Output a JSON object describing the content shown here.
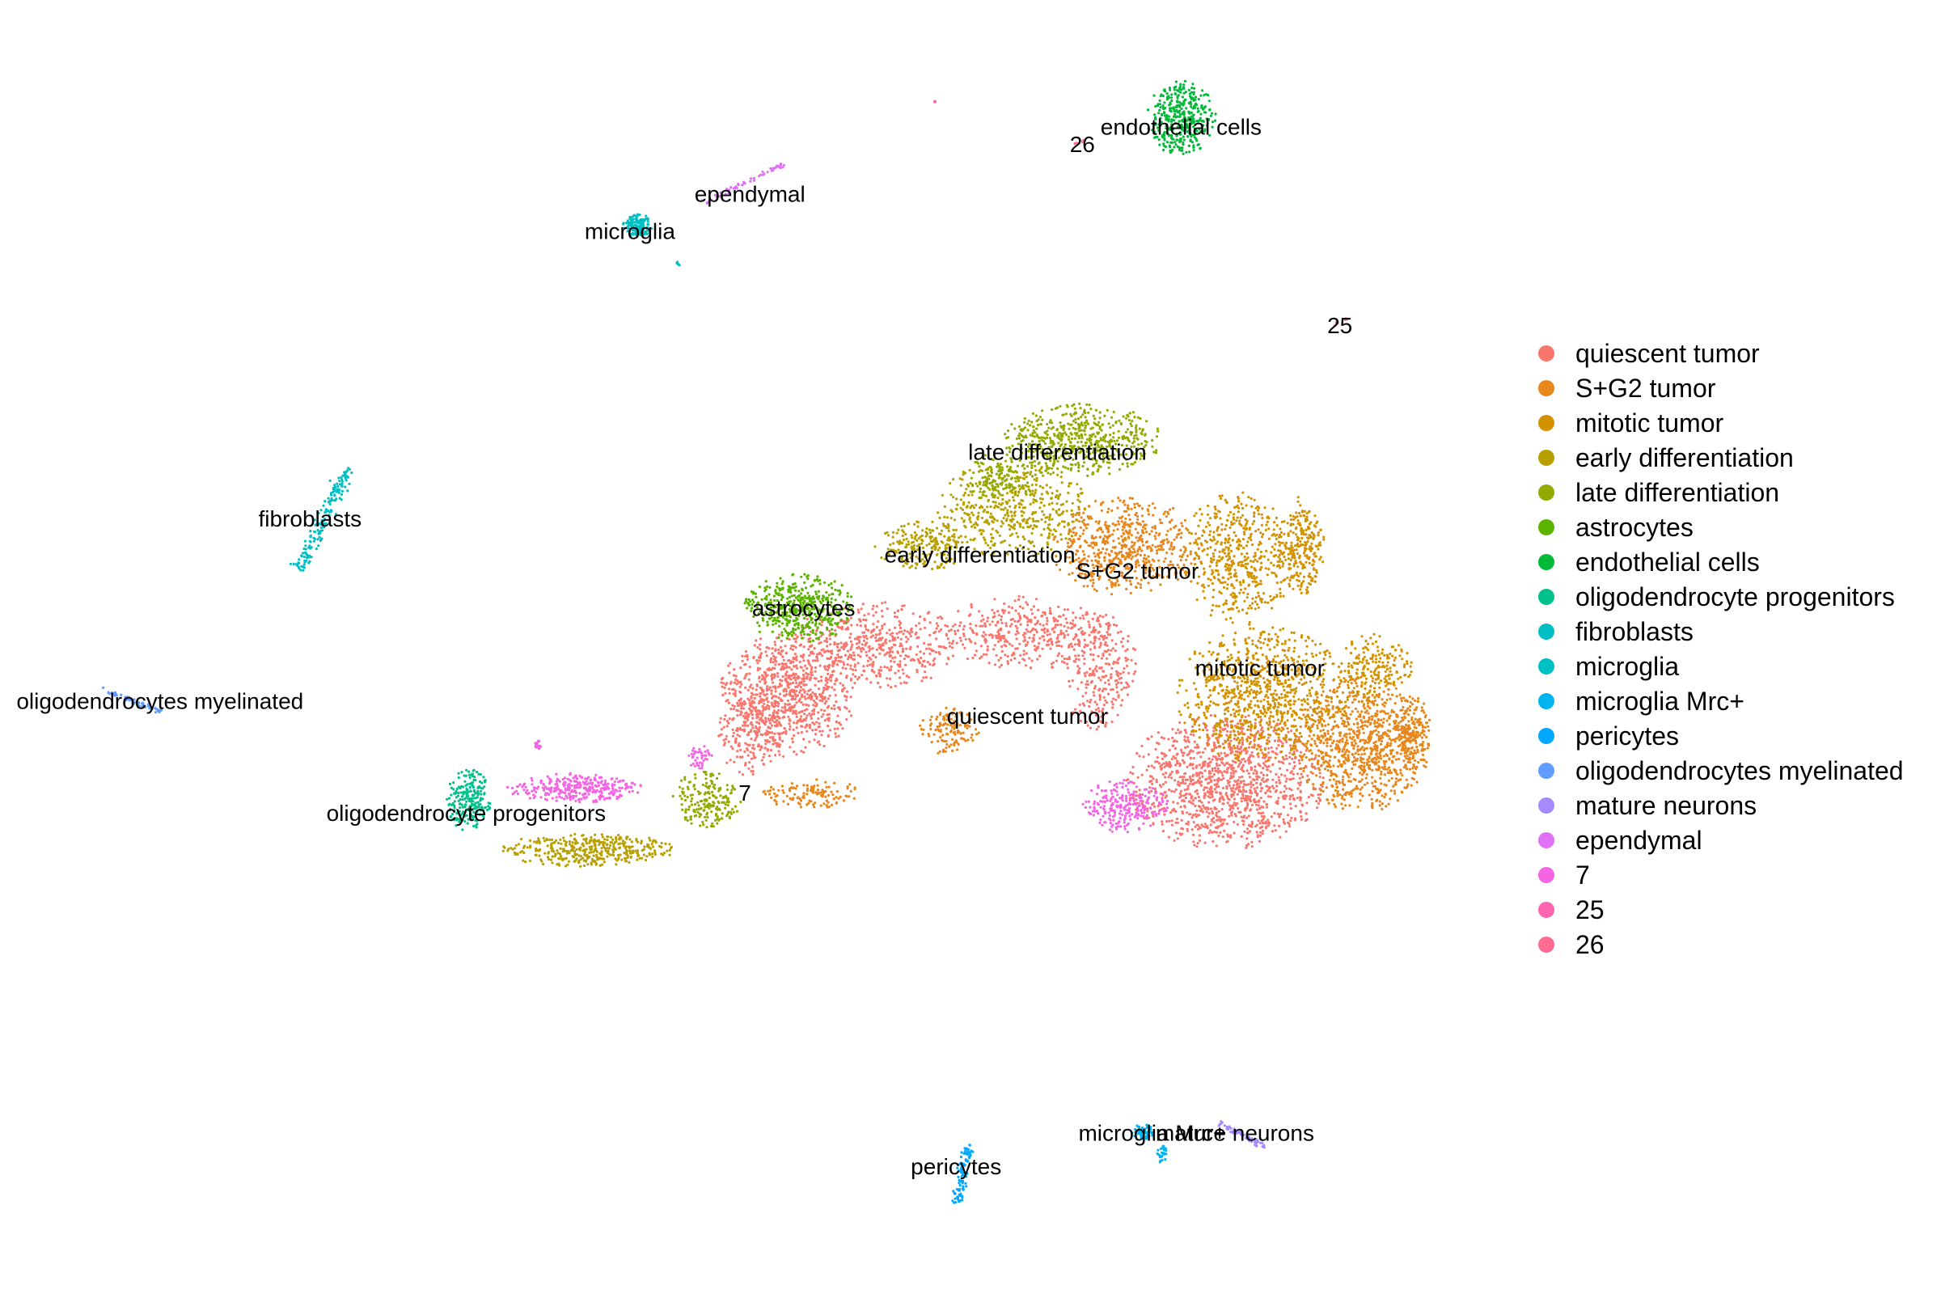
{
  "chart_data": {
    "type": "scatter",
    "title": "",
    "xlabel": "",
    "ylabel": "",
    "xlim": [
      0,
      1553
    ],
    "ylim": [
      0,
      1043
    ],
    "grid": false,
    "legend_position": "right",
    "series": [
      {
        "name": "quiescent tumor",
        "color": "#F8766D",
        "label_at": [
          822,
          577
        ],
        "blobs": [
          [
            630,
            560,
            55,
            50,
            800
          ],
          [
            700,
            520,
            70,
            35,
            500
          ],
          [
            980,
            630,
            80,
            55,
            1200
          ],
          [
            820,
            510,
            70,
            30,
            400
          ],
          [
            880,
            540,
            30,
            50,
            250
          ],
          [
            600,
            590,
            25,
            40,
            200
          ]
        ]
      },
      {
        "name": "S+G2 tumor",
        "color": "#E7861B",
        "label_at": [
          910,
          460
        ],
        "blobs": [
          [
            1090,
            600,
            55,
            55,
            900
          ],
          [
            900,
            440,
            60,
            40,
            600
          ],
          [
            760,
            590,
            25,
            20,
            120
          ],
          [
            650,
            640,
            40,
            12,
            120
          ],
          [
            1130,
            590,
            15,
            30,
            150
          ]
        ]
      },
      {
        "name": "mitotic tumor",
        "color": "#D39200",
        "label_at": [
          1008,
          538
        ],
        "blobs": [
          [
            1010,
            560,
            70,
            55,
            900
          ],
          [
            990,
            450,
            45,
            55,
            500
          ],
          [
            1040,
            440,
            20,
            40,
            250
          ],
          [
            1100,
            540,
            30,
            30,
            200
          ]
        ]
      },
      {
        "name": "early differentiation",
        "color": "#B8A000",
        "label_at": [
          784,
          447
        ],
        "blobs": [
          [
            470,
            685,
            70,
            14,
            400
          ],
          [
            810,
            410,
            60,
            40,
            450
          ],
          [
            740,
            440,
            40,
            20,
            200
          ]
        ]
      },
      {
        "name": "late differentiation",
        "color": "#93AA00",
        "label_at": [
          846,
          364
        ],
        "blobs": [
          [
            865,
            355,
            65,
            30,
            550
          ],
          [
            565,
            645,
            28,
            25,
            200
          ],
          [
            800,
            385,
            30,
            20,
            150
          ]
        ]
      },
      {
        "name": "astrocytes",
        "color": "#5BB300",
        "label_at": [
          643,
          490
        ],
        "blobs": [
          [
            640,
            490,
            45,
            28,
            450
          ]
        ]
      },
      {
        "name": "endothelial cells",
        "color": "#00BA38",
        "label_at": [
          945,
          102
        ],
        "blobs": [
          [
            945,
            95,
            28,
            30,
            380
          ]
        ]
      },
      {
        "name": "oligodendrocyte progenitors",
        "color": "#00C08B",
        "label_at": [
          373,
          655
        ],
        "blobs": [
          [
            375,
            645,
            18,
            25,
            220
          ]
        ]
      },
      {
        "name": "fibroblasts",
        "color": "#00BFC4",
        "label_at": [
          248,
          418
        ],
        "line": [
          [
            277,
            380
          ],
          [
            240,
            457
          ],
          6,
          160
        ]
      },
      {
        "name": "microglia",
        "color": "#00BFC4",
        "label_at": [
          504,
          186
        ],
        "blobs": [
          [
            510,
            182,
            12,
            10,
            150
          ],
          [
            542,
            212,
            2,
            3,
            6
          ]
        ]
      },
      {
        "name": "microglia Mrc+",
        "color": "#00B4F0",
        "label_at": [
          922,
          913
        ],
        "blobs": [
          [
            915,
            912,
            10,
            6,
            60
          ],
          [
            930,
            930,
            4,
            8,
            30
          ]
        ]
      },
      {
        "name": "pericytes",
        "color": "#00A9FF",
        "label_at": [
          765,
          940
        ],
        "line": [
          [
            775,
            925
          ],
          [
            765,
            970
          ],
          4,
          100
        ]
      },
      {
        "name": "oligodendrocytes myelinated",
        "color": "#619CFF",
        "label_at": [
          128,
          565
        ],
        "line": [
          [
            82,
            556
          ],
          [
            130,
            574
          ],
          2,
          60
        ]
      },
      {
        "name": "mature neurons",
        "color": "#A58AFF",
        "label_at": [
          988,
          913
        ],
        "line": [
          [
            975,
            905
          ],
          [
            1013,
            925
          ],
          2,
          60
        ]
      },
      {
        "name": "ependymal",
        "color": "#DF70F8",
        "label_at": [
          600,
          156
        ],
        "line": [
          [
            560,
            165
          ],
          [
            628,
            132
          ],
          2,
          60
        ]
      },
      {
        "name": "7",
        "color": "#F564E3",
        "label_at": [
          596,
          639
        ],
        "blobs": [
          [
            460,
            635,
            55,
            12,
            320
          ],
          [
            900,
            650,
            35,
            22,
            250
          ],
          [
            430,
            601,
            3,
            5,
            15
          ],
          [
            560,
            610,
            10,
            10,
            40
          ]
        ]
      },
      {
        "name": "25",
        "color": "#FF64B0",
        "label_at": [
          1072,
          262
        ],
        "line": [
          [
            1066,
            262
          ],
          [
            1078,
            257
          ],
          1,
          10
        ]
      },
      {
        "name": "26",
        "color": "#FF6C91",
        "label_at": [
          866,
          116
        ],
        "line": [
          [
            858,
            117
          ],
          [
            868,
            113
          ],
          1,
          8
        ]
      }
    ],
    "extra_points": [
      {
        "color": "#FF64B0",
        "x": 748,
        "y": 82
      }
    ]
  }
}
